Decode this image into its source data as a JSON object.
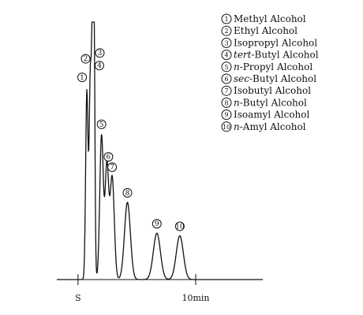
{
  "chart_data": {
    "type": "line",
    "xlabel": "",
    "ylabel": "",
    "xlim": [
      -1.8,
      15.7
    ],
    "ylim": [
      0,
      1.0
    ],
    "grid": false,
    "legend_placement": "top-right",
    "x_ticks": [
      {
        "value": 0,
        "label": "S"
      },
      {
        "value": 10,
        "label": "10min"
      }
    ],
    "peaks": [
      {
        "id": "1",
        "label": "①",
        "name": "Methyl Alcohol",
        "x": 0.75,
        "height": 0.73,
        "width": 0.1
      },
      {
        "id": "2",
        "label": "②",
        "name": "Ethyl Alcohol",
        "x": 1.05,
        "height": 0.79,
        "width": 0.1
      },
      {
        "id": "3",
        "label": "③",
        "name": "Isopropyl Alcohol",
        "x": 1.25,
        "height": 0.88,
        "width": 0.08
      },
      {
        "id": "4",
        "label": "④",
        "name": "tert-Butyl Alcohol",
        "x": 1.35,
        "height": 1.0,
        "width": 0.08
      },
      {
        "id": "5",
        "label": "⑤",
        "name": "n-Propyl Alcohol",
        "x": 2.0,
        "height": 0.56,
        "width": 0.15
      },
      {
        "id": "6",
        "label": "⑥",
        "name": "sec-Butyl Alcohol",
        "x": 2.45,
        "height": 0.44,
        "width": 0.15
      },
      {
        "id": "7",
        "label": "⑦",
        "name": "Isobutyl Alcohol",
        "x": 2.9,
        "height": 0.4,
        "width": 0.18
      },
      {
        "id": "8",
        "label": "⑧",
        "name": "n-Butyl Alcohol",
        "x": 4.2,
        "height": 0.3,
        "width": 0.25
      },
      {
        "id": "9",
        "label": "⑨",
        "name": "Isoamyl Alcohol",
        "x": 6.7,
        "height": 0.18,
        "width": 0.3
      },
      {
        "id": "10",
        "label": "⑩",
        "name": "n-Amyl Alcohol",
        "x": 8.65,
        "height": 0.17,
        "width": 0.3
      }
    ],
    "legend": [
      {
        "number": "1",
        "prefix": "",
        "name": "Methyl Alcohol"
      },
      {
        "number": "2",
        "prefix": "",
        "name": "Ethyl Alcohol"
      },
      {
        "number": "3",
        "prefix": "",
        "name": "Isopropyl Alcohol"
      },
      {
        "number": "4",
        "prefix": "tert",
        "name": "-Butyl Alcohol"
      },
      {
        "number": "5",
        "prefix": "n",
        "name": "-Propyl Alcohol"
      },
      {
        "number": "6",
        "prefix": "sec",
        "name": "-Butyl Alcohol"
      },
      {
        "number": "7",
        "prefix": "",
        "name": "Isobutyl Alcohol"
      },
      {
        "number": "8",
        "prefix": "n",
        "name": "-Butyl Alcohol"
      },
      {
        "number": "9",
        "prefix": "",
        "name": "Isoamyl Alcohol"
      },
      {
        "number": "10",
        "prefix": "n",
        "name": "-Amyl Alcohol"
      }
    ],
    "colors": {
      "line": "#111111",
      "background": "#ffffff"
    }
  }
}
